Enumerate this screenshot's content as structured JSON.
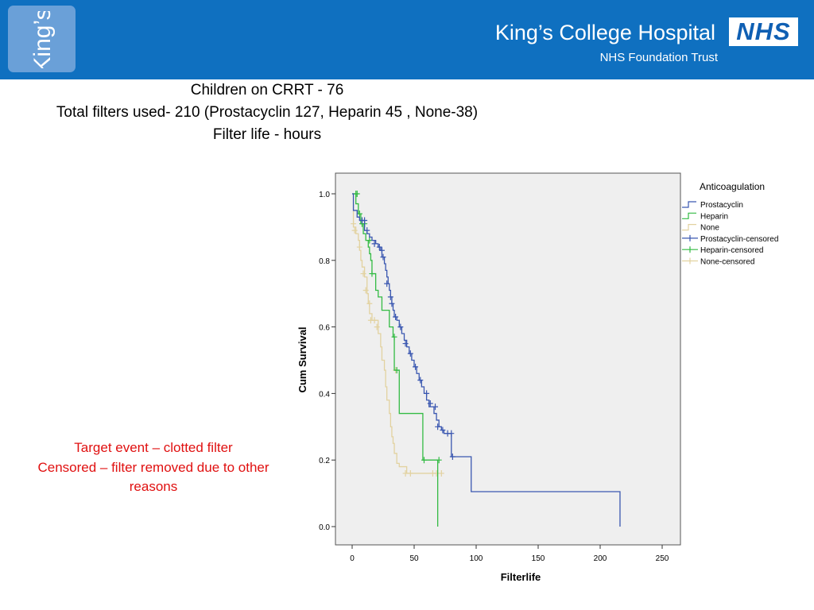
{
  "header": {
    "logo_text": "King’s",
    "hospital_name": "King’s College Hospital",
    "trust_name": "NHS Foundation Trust",
    "nhs_logo": "NHS",
    "colors": {
      "header_bg": "#0f70c0",
      "logo_box": "#6aa0d8"
    }
  },
  "summary": {
    "line1": "Children on CRRT -  76",
    "line2": "Total filters used- 210 (Prostacyclin 127, Heparin 45 , None-38)",
    "line3": "Filter life - hours"
  },
  "notes": {
    "line1": "Target event – clotted filter",
    "line2": "Censored – filter removed due to other",
    "line3": "reasons"
  },
  "chart_data": {
    "type": "line",
    "subtype": "kaplan-meier-step",
    "title": "",
    "xlabel": "Filterlife",
    "ylabel": "Cum Survival",
    "xlim": [
      0,
      250
    ],
    "ylim": [
      0,
      1
    ],
    "xticks": [
      "0",
      "50",
      "100",
      "150",
      "200",
      "250"
    ],
    "yticks": [
      "0.0",
      "0.2",
      "0.4",
      "0.6",
      "0.8",
      "1.0"
    ],
    "grid": false,
    "legend_title": "Anticoagulation",
    "legend_position": "right",
    "legend": [
      "Prostacyclin",
      "Heparin",
      "None",
      "Prostacyclin-censored",
      "Heparin-censored",
      "None-censored"
    ],
    "series": [
      {
        "name": "Prostacyclin",
        "color": "#3a57b0",
        "steps": [
          [
            0,
            1.0
          ],
          [
            1,
            0.95
          ],
          [
            4,
            0.93
          ],
          [
            6,
            0.92
          ],
          [
            10,
            0.89
          ],
          [
            12,
            0.88
          ],
          [
            14,
            0.87
          ],
          [
            16,
            0.86
          ],
          [
            19,
            0.85
          ],
          [
            21,
            0.84
          ],
          [
            23,
            0.83
          ],
          [
            24,
            0.81
          ],
          [
            26,
            0.79
          ],
          [
            27,
            0.77
          ],
          [
            28,
            0.75
          ],
          [
            29,
            0.73
          ],
          [
            30,
            0.71
          ],
          [
            31,
            0.69
          ],
          [
            32,
            0.67
          ],
          [
            33,
            0.65
          ],
          [
            34,
            0.63
          ],
          [
            36,
            0.62
          ],
          [
            38,
            0.6
          ],
          [
            40,
            0.58
          ],
          [
            42,
            0.56
          ],
          [
            44,
            0.54
          ],
          [
            46,
            0.52
          ],
          [
            48,
            0.5
          ],
          [
            50,
            0.48
          ],
          [
            52,
            0.46
          ],
          [
            54,
            0.44
          ],
          [
            56,
            0.42
          ],
          [
            58,
            0.4
          ],
          [
            60,
            0.38
          ],
          [
            62,
            0.36
          ],
          [
            66,
            0.34
          ],
          [
            68,
            0.32
          ],
          [
            70,
            0.3
          ],
          [
            72,
            0.29
          ],
          [
            74,
            0.28
          ],
          [
            80,
            0.21
          ],
          [
            96,
            0.105
          ],
          [
            216,
            0.105
          ],
          [
            216,
            0.0
          ]
        ],
        "censored": [
          [
            8,
            0.92
          ],
          [
            10,
            0.92
          ],
          [
            12,
            0.89
          ],
          [
            18,
            0.85
          ],
          [
            22,
            0.84
          ],
          [
            24,
            0.83
          ],
          [
            25,
            0.81
          ],
          [
            28,
            0.73
          ],
          [
            31,
            0.69
          ],
          [
            32,
            0.67
          ],
          [
            35,
            0.63
          ],
          [
            39,
            0.6
          ],
          [
            43,
            0.55
          ],
          [
            47,
            0.52
          ],
          [
            51,
            0.48
          ],
          [
            55,
            0.44
          ],
          [
            60,
            0.4
          ],
          [
            63,
            0.37
          ],
          [
            67,
            0.36
          ],
          [
            69,
            0.3
          ],
          [
            73,
            0.29
          ],
          [
            77,
            0.28
          ],
          [
            80,
            0.28
          ],
          [
            81,
            0.21
          ]
        ]
      },
      {
        "name": "Heparin",
        "color": "#33bb44",
        "steps": [
          [
            0,
            1.0
          ],
          [
            3,
            0.97
          ],
          [
            5,
            0.94
          ],
          [
            7,
            0.91
          ],
          [
            9,
            0.88
          ],
          [
            11,
            0.86
          ],
          [
            13,
            0.84
          ],
          [
            14,
            0.82
          ],
          [
            15,
            0.8
          ],
          [
            16,
            0.76
          ],
          [
            19,
            0.71
          ],
          [
            21,
            0.69
          ],
          [
            24,
            0.65
          ],
          [
            30,
            0.6
          ],
          [
            33,
            0.57
          ],
          [
            34,
            0.47
          ],
          [
            38,
            0.34
          ],
          [
            57,
            0.2
          ],
          [
            69,
            0.0
          ]
        ],
        "censored": [
          [
            3,
            1.0
          ],
          [
            4,
            1.0
          ],
          [
            6,
            0.94
          ],
          [
            8,
            0.91
          ],
          [
            10,
            0.91
          ],
          [
            14,
            0.86
          ],
          [
            16,
            0.76
          ],
          [
            34,
            0.57
          ],
          [
            36,
            0.47
          ],
          [
            58,
            0.2
          ],
          [
            70,
            0.2
          ]
        ]
      },
      {
        "name": "None",
        "color": "#e2d2a0",
        "steps": [
          [
            0,
            1.0
          ],
          [
            1,
            0.9
          ],
          [
            3,
            0.88
          ],
          [
            5,
            0.86
          ],
          [
            6,
            0.83
          ],
          [
            7,
            0.8
          ],
          [
            8,
            0.78
          ],
          [
            10,
            0.75
          ],
          [
            12,
            0.7
          ],
          [
            13,
            0.67
          ],
          [
            14,
            0.64
          ],
          [
            16,
            0.62
          ],
          [
            21,
            0.58
          ],
          [
            23,
            0.54
          ],
          [
            24,
            0.5
          ],
          [
            26,
            0.47
          ],
          [
            27,
            0.42
          ],
          [
            28,
            0.38
          ],
          [
            30,
            0.34
          ],
          [
            31,
            0.3
          ],
          [
            32,
            0.27
          ],
          [
            33,
            0.25
          ],
          [
            34,
            0.22
          ],
          [
            36,
            0.19
          ],
          [
            38,
            0.18
          ],
          [
            44,
            0.16
          ],
          [
            68,
            0.16
          ]
        ],
        "censored": [
          [
            1,
            0.91
          ],
          [
            2,
            0.89
          ],
          [
            6,
            0.84
          ],
          [
            9,
            0.76
          ],
          [
            11,
            0.71
          ],
          [
            14,
            0.67
          ],
          [
            15,
            0.62
          ],
          [
            18,
            0.62
          ],
          [
            20,
            0.6
          ],
          [
            35,
            0.47
          ],
          [
            43,
            0.16
          ],
          [
            47,
            0.16
          ],
          [
            65,
            0.16
          ],
          [
            68,
            0.16
          ],
          [
            72,
            0.16
          ]
        ]
      }
    ]
  }
}
